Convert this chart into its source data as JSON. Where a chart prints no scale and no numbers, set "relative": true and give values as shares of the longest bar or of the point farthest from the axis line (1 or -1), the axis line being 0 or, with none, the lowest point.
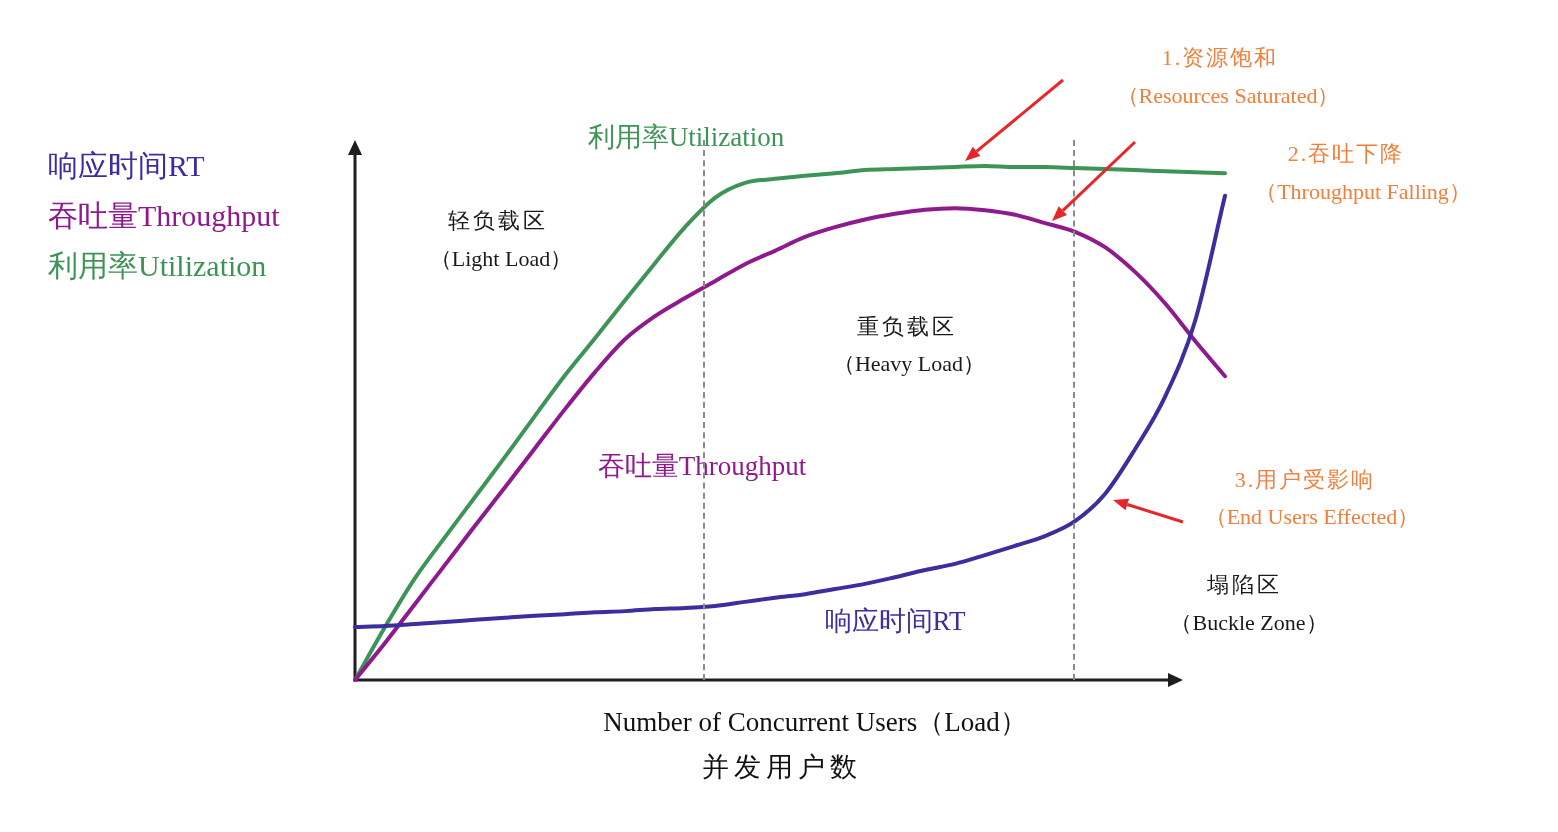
{
  "chart_data": {
    "type": "line",
    "relative": true,
    "xlabel": "Number of Concurrent Users（Load）",
    "categories": [
      null,
      null,
      null,
      null,
      null,
      null,
      null,
      null,
      null,
      null,
      null,
      null,
      null,
      null,
      null,
      null,
      null,
      null,
      null,
      null,
      null,
      null,
      null,
      null,
      null,
      null,
      null,
      null,
      null,
      null
    ],
    "series": [
      {
        "name": "响应时间RT",
        "color": "#3b2f9e",
        "values": [
          0.103,
          0.105,
          0.109,
          0.113,
          0.117,
          0.121,
          0.125,
          0.128,
          0.132,
          0.134,
          0.138,
          0.14,
          0.144,
          0.152,
          0.16,
          0.167,
          0.177,
          0.187,
          0.2,
          0.214,
          0.226,
          0.243,
          0.261,
          0.28,
          0.309,
          0.362,
          0.449,
          0.551,
          0.698,
          0.942
        ]
      },
      {
        "name": "吞吐量Throughput",
        "color": "#8e1a8e",
        "values": [
          0,
          0.072,
          0.148,
          0.224,
          0.3,
          0.375,
          0.451,
          0.527,
          0.599,
          0.663,
          0.708,
          0.743,
          0.776,
          0.809,
          0.835,
          0.862,
          0.881,
          0.896,
          0.907,
          0.915,
          0.918,
          0.914,
          0.905,
          0.889,
          0.872,
          0.842,
          0.794,
          0.733,
          0.66,
          0.591
        ]
      },
      {
        "name": "利用率Utilization",
        "color": "#3e9457",
        "values": [
          0,
          0.103,
          0.198,
          0.278,
          0.356,
          0.434,
          0.514,
          0.593,
          0.665,
          0.739,
          0.811,
          0.881,
          0.938,
          0.967,
          0.975,
          0.981,
          0.986,
          0.992,
          0.994,
          0.996,
          0.998,
          1,
          0.998,
          0.998,
          0.996,
          0.994,
          0.992,
          0.99,
          0.988,
          0.986
        ]
      }
    ],
    "legend": "left",
    "marker": "none",
    "line_style": "solid",
    "annotations": [
      "1.资源饱和",
      "（Resources Saturated）",
      "2.吞吐下降",
      "（Throughput Falling）",
      "3.用户受影响",
      "（End Users Effected）",
      "轻负载区",
      "（Light Load）",
      "重负载区",
      "（Heavy Load）",
      "塌陷区",
      "（Buckle Zone）",
      "并发用户数"
    ]
  }
}
